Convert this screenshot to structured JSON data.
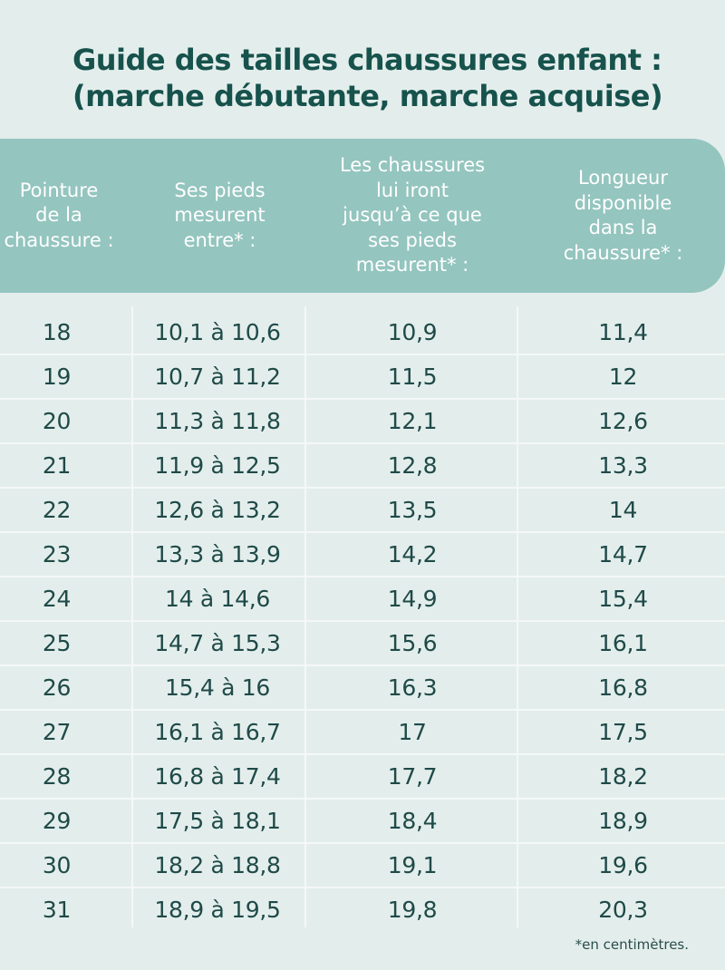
{
  "title": {
    "line1": "Guide des tailles chaussures enfant :",
    "line2": "(marche débutante, marche acquise)"
  },
  "headers": [
    "Pointure\nde la\nchaussure :",
    "Ses pieds\nmesurent\nentre* :",
    "Les chaussures\nlui iront\njusqu’à ce que\nses pieds\nmesurent* :",
    "Longueur\ndisponible\ndans la\nchaussure* :"
  ],
  "rows": [
    [
      "18",
      "10,1 à 10,6",
      "10,9",
      "11,4"
    ],
    [
      "19",
      "10,7 à 11,2",
      "11,5",
      "12"
    ],
    [
      "20",
      "11,3 à 11,8",
      "12,1",
      "12,6"
    ],
    [
      "21",
      "11,9 à 12,5",
      "12,8",
      "13,3"
    ],
    [
      "22",
      "12,6 à 13,2",
      "13,5",
      "14"
    ],
    [
      "23",
      "13,3 à 13,9",
      "14,2",
      "14,7"
    ],
    [
      "24",
      "14 à 14,6",
      "14,9",
      "15,4"
    ],
    [
      "25",
      "14,7 à 15,3",
      "15,6",
      "16,1"
    ],
    [
      "26",
      "15,4 à 16",
      "16,3",
      "16,8"
    ],
    [
      "27",
      "16,1 à 16,7",
      "17",
      "17,5"
    ],
    [
      "28",
      "16,8 à 17,4",
      "17,7",
      "18,2"
    ],
    [
      "29",
      "17,5 à 18,1",
      "18,4",
      "18,9"
    ],
    [
      "30",
      "18,2 à 18,8",
      "19,1",
      "19,6"
    ],
    [
      "31",
      "18,9 à 19,5",
      "19,8",
      "20,3"
    ]
  ],
  "footnote": "*en centimètres.",
  "colors": {
    "background": "#e3eeec",
    "header": "#94c5bf",
    "title": "#17524c",
    "text": "#1f4a48"
  }
}
